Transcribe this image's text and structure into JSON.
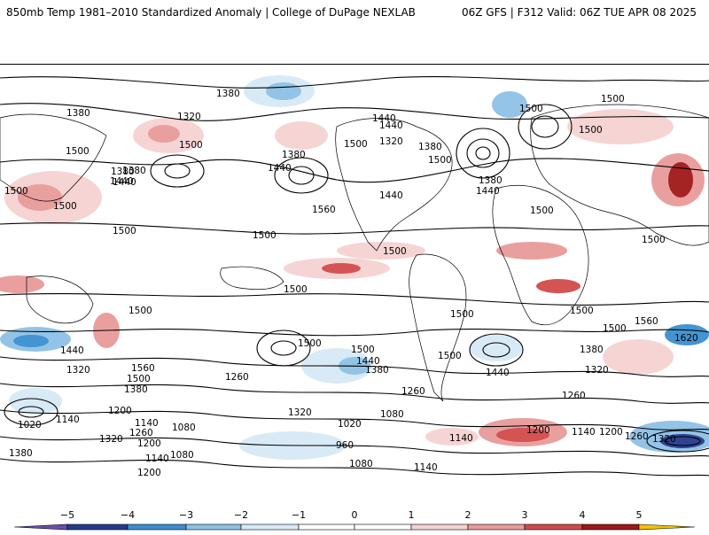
{
  "header": {
    "title_left": "850mb Temp 1981–2010 Standardized Anomaly | College of DuPage NEXLAB",
    "title_right": "06Z GFS | F312 Valid: 06Z TUE APR 08 2025"
  },
  "colors": {
    "neg5": "#6a4fa8",
    "neg4": "#253a8c",
    "neg3": "#3b8fd0",
    "neg2": "#8ec1e6",
    "neg1": "#d6e9f6",
    "zero": "#ffffff",
    "pos1": "#f6d2d2",
    "pos2": "#e99a9a",
    "pos3": "#d24a4a",
    "pos4": "#a01818",
    "pos5": "#f2c200"
  },
  "legend": {
    "ticks": [
      "−5",
      "−4",
      "−3",
      "−2",
      "−1",
      "0",
      "1",
      "2",
      "3",
      "4",
      "5"
    ]
  },
  "contour_labels": [
    "1380",
    "1380",
    "1320",
    "1440",
    "1500",
    "1500",
    "1500",
    "1380",
    "1440",
    "1500",
    "1500",
    "1380",
    "1440",
    "1500",
    "1380",
    "1440",
    "1320",
    "1500",
    "1380",
    "1440",
    "1500",
    "1440",
    "1500",
    "1500",
    "1380",
    "1440",
    "1560",
    "1500",
    "1500",
    "1500",
    "1500",
    "1500",
    "1500",
    "1500",
    "1500",
    "1500",
    "1500",
    "1560",
    "1620",
    "1440",
    "1320",
    "1560",
    "1500",
    "1380",
    "1260",
    "1500",
    "1500",
    "1440",
    "1380",
    "1260",
    "1440",
    "1380",
    "1320",
    "1260",
    "1200",
    "1140",
    "1020",
    "1140",
    "1260",
    "1080",
    "1200",
    "1380",
    "1320",
    "1200",
    "1140",
    "1080",
    "1020",
    "1080",
    "960",
    "1080",
    "1320",
    "1140",
    "1200",
    "1140",
    "1200",
    "1260",
    "1320",
    "1140"
  ]
}
